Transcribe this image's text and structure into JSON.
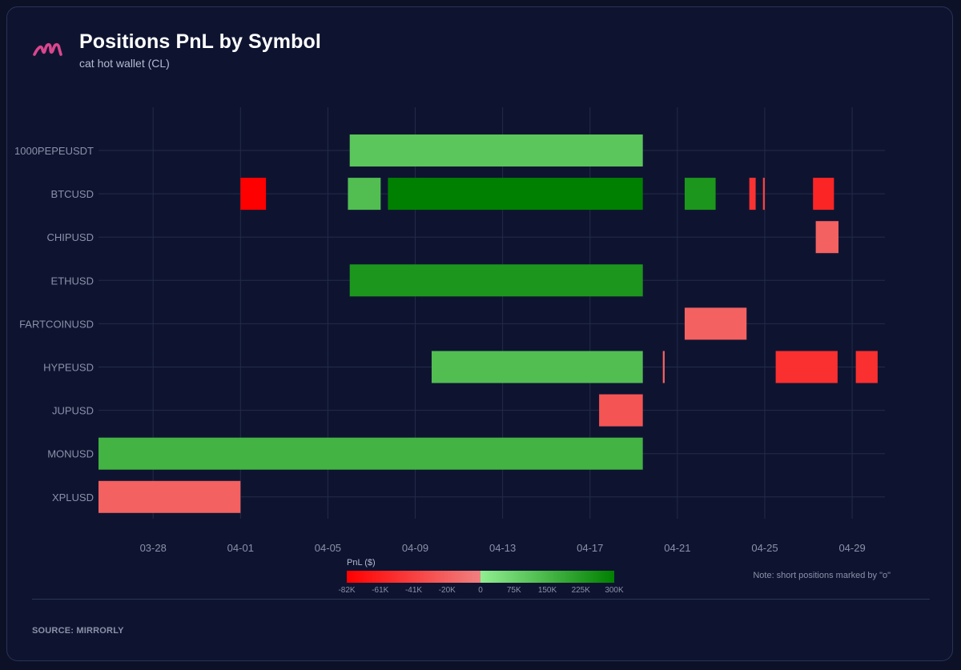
{
  "header": {
    "title": "Positions PnL by Symbol",
    "subtitle": "cat hot wallet (CL)"
  },
  "footer": {
    "source": "SOURCE: MIRRORLY",
    "note": "Note: short positions marked by \"o\""
  },
  "colors": {
    "background": "#0e1430",
    "brand": "#d9468e",
    "negative": "#ff1f1f",
    "positive": "#2aa12a"
  },
  "chart_data": {
    "type": "timeline",
    "title": "Positions PnL by Symbol",
    "xlabel": "",
    "ylabel": "",
    "x_range": [
      "2025-03-25T12:00",
      "2025-04-30T12:00"
    ],
    "x_ticks": [
      "03-28",
      "04-01",
      "04-05",
      "04-09",
      "04-13",
      "04-17",
      "04-21",
      "04-25",
      "04-29"
    ],
    "x_tick_dates": [
      "2025-03-28",
      "2025-04-01",
      "2025-04-05",
      "2025-04-09",
      "2025-04-13",
      "2025-04-17",
      "2025-04-21",
      "2025-04-25",
      "2025-04-29"
    ],
    "categories": [
      "1000PEPEUSDT",
      "BTCUSD",
      "CHIPUSD",
      "ETHUSD",
      "FARTCOINUSD",
      "HYPEUSD",
      "JUPUSD",
      "MONUSD",
      "XPLUSD"
    ],
    "grid": true,
    "positions": [
      {
        "symbol": "1000PEPEUSDT",
        "start": "2025-04-06T00:00",
        "end": "2025-04-19T10:00",
        "pnl": 110000
      },
      {
        "symbol": "BTCUSD",
        "start": "2025-04-01T00:00",
        "end": "2025-04-02T04:00",
        "pnl": -82000
      },
      {
        "symbol": "BTCUSD",
        "start": "2025-04-05T22:00",
        "end": "2025-04-07T10:00",
        "pnl": 130000
      },
      {
        "symbol": "BTCUSD",
        "start": "2025-04-07T18:00",
        "end": "2025-04-19T10:00",
        "pnl": 300000
      },
      {
        "symbol": "BTCUSD",
        "start": "2025-04-21T08:00",
        "end": "2025-04-22T18:00",
        "pnl": 240000
      },
      {
        "symbol": "BTCUSD",
        "start": "2025-04-24T07:00",
        "end": "2025-04-24T14:00",
        "pnl": -50000
      },
      {
        "symbol": "BTCUSD",
        "start": "2025-04-24T22:00",
        "end": "2025-04-25T00:00",
        "pnl": -40000
      },
      {
        "symbol": "BTCUSD",
        "start": "2025-04-27T05:00",
        "end": "2025-04-28T04:00",
        "pnl": -58000
      },
      {
        "symbol": "CHIPUSD",
        "start": "2025-04-27T08:00",
        "end": "2025-04-28T09:00",
        "pnl": -20000
      },
      {
        "symbol": "ETHUSD",
        "start": "2025-04-06T00:00",
        "end": "2025-04-19T10:00",
        "pnl": 240000
      },
      {
        "symbol": "FARTCOINUSD",
        "start": "2025-04-21T08:00",
        "end": "2025-04-24T04:00",
        "pnl": -20000
      },
      {
        "symbol": "HYPEUSD",
        "start": "2025-04-09T18:00",
        "end": "2025-04-19T10:00",
        "pnl": 130000
      },
      {
        "symbol": "HYPEUSD",
        "start": "2025-04-20T08:00",
        "end": "2025-04-20T10:00",
        "pnl": -20000
      },
      {
        "symbol": "HYPEUSD",
        "start": "2025-04-25T12:00",
        "end": "2025-04-28T08:00",
        "pnl": -52000
      },
      {
        "symbol": "HYPEUSD",
        "start": "2025-04-29T04:00",
        "end": "2025-04-30T04:00",
        "pnl": -52000
      },
      {
        "symbol": "JUPUSD",
        "start": "2025-04-17T10:00",
        "end": "2025-04-19T10:00",
        "pnl": -28000
      },
      {
        "symbol": "MONUSD",
        "start": "2025-03-25T12:00",
        "end": "2025-04-19T10:00",
        "pnl": 160000
      },
      {
        "symbol": "XPLUSD",
        "start": "2025-03-25T12:00",
        "end": "2025-04-01T00:00",
        "pnl": -20000
      }
    ],
    "colorbar": {
      "title": "PnL ($)",
      "neg_ticks": [
        "-82K",
        "-61K",
        "-41K",
        "-20K",
        "0"
      ],
      "pos_ticks": [
        "75K",
        "150K",
        "225K",
        "300K"
      ],
      "min": -82000,
      "max": 300000
    }
  }
}
